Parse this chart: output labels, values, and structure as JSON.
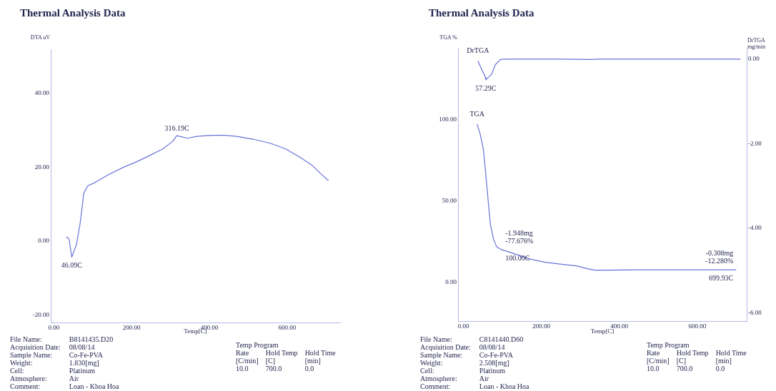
{
  "chart_data": [
    {
      "type": "line",
      "title": "Thermal Analysis Data",
      "xlabel": "Temp[C]",
      "ylabel": "DTA uV",
      "xlim": [
        -8,
        736
      ],
      "xticks": [
        {
          "value": 0,
          "label": "0.00"
        },
        {
          "value": 200,
          "label": "200.00"
        },
        {
          "value": 400,
          "label": "400.00"
        },
        {
          "value": 600,
          "label": "600.00"
        }
      ],
      "ylim": [
        -22,
        52
      ],
      "yticks": [
        {
          "value": -20,
          "label": "-20.00"
        },
        {
          "value": 0,
          "label": "0.00"
        },
        {
          "value": 20,
          "label": "20.00"
        },
        {
          "value": 40,
          "label": "40.00"
        }
      ],
      "series": [
        {
          "color": "#6a72d8",
          "x": [
            31.6,
            39,
            46.09,
            58,
            68,
            77,
            87,
            102,
            140,
            178,
            210,
            242,
            280,
            305,
            316.19,
            343,
            368,
            406,
            438,
            470,
            514,
            558,
            596,
            634,
            666,
            685,
            706
          ],
          "values": [
            1.2,
            0.7,
            -4.3,
            -0.9,
            5.1,
            13,
            15,
            15.7,
            18,
            20,
            21.4,
            23,
            25,
            27,
            28.6,
            27.9,
            28.4,
            28.7,
            28.7,
            28.4,
            27.6,
            26.5,
            25,
            22.7,
            20.4,
            18.4,
            16.4
          ]
        }
      ],
      "annotations": [
        {
          "text": "316.19C",
          "x": 316.19,
          "y": 28.6
        },
        {
          "text": "46.09C",
          "x": 46.09,
          "y": -4.3
        },
        "File Name:\tB8141435.D20",
        "Acquisition Date:\t08/08/14",
        "Sample Name:\tCo-Fe-PVA",
        "Weight:\t1.830[mg]",
        "Cell:\tPlatinum",
        "Atmosphere:\tAir",
        "Comment:\tLoan - Khoa Hoa",
        "Temp Program",
        "Rate\tHold Temp\tHold Time",
        "[C/min]\t[C]\t[min]",
        "10.0\t700.0\t0.0"
      ]
    },
    {
      "type": "line",
      "title": "Thermal Analysis Data",
      "xlabel": "Temp[C]",
      "ylabel": "TGA %",
      "y2label": "DrTGA mg/min",
      "xlim": [
        -14,
        727
      ],
      "xticks": [
        {
          "value": 0,
          "label": "0.00"
        },
        {
          "value": 200,
          "label": "200.00"
        },
        {
          "value": 400,
          "label": "400.00"
        },
        {
          "value": 600,
          "label": "600.00"
        }
      ],
      "ylim": [
        -24,
        144
      ],
      "yticks": [
        {
          "value": 0,
          "label": "0.00"
        },
        {
          "value": 50,
          "label": "50.00"
        },
        {
          "value": 100,
          "label": "100.00"
        }
      ],
      "y2lim": [
        -6.19,
        0.25
      ],
      "y2ticks": [
        {
          "value": -6,
          "label": "-6.00"
        },
        {
          "value": -4,
          "label": "-4.00"
        },
        {
          "value": -2,
          "label": "-2.00"
        },
        {
          "value": 0,
          "label": "0.00"
        }
      ],
      "series": [
        {
          "name": "DrTGA",
          "color": "#6a72d8",
          "axis": "y2",
          "x": [
            37,
            47,
            56,
            57.29,
            72,
            82,
            95,
            107,
            248,
            325,
            344,
            440,
            711
          ],
          "values": [
            -0.04,
            -0.25,
            -0.42,
            -0.49,
            -0.36,
            -0.13,
            -0.01,
            0,
            0,
            -0.01,
            0,
            0,
            0
          ]
        },
        {
          "name": "TGA",
          "color": "#6a72d8",
          "x": [
            35,
            43,
            51,
            56,
            63,
            69,
            77,
            85,
            95,
            100,
            133,
            171,
            210,
            248,
            293,
            318,
            337,
            376,
            440,
            503,
            567,
            631,
            699.93
          ],
          "values": [
            97.4,
            91.2,
            82,
            69.6,
            51.2,
            35.7,
            26.5,
            21.9,
            20.3,
            19.9,
            17.3,
            14.2,
            12.2,
            11.1,
            9.9,
            8.3,
            7.4,
            7.4,
            7.6,
            7.6,
            7.6,
            7.6,
            7.6
          ]
        }
      ],
      "annotations": [
        {
          "text": "57.29C",
          "x": 57.29,
          "y": 124.7
        },
        {
          "text": "100.00C",
          "x": 100,
          "y": 19.9
        },
        {
          "text": "-1.948mg",
          "x": 100,
          "y": 19.9
        },
        {
          "text": "-77.676%",
          "x": 100,
          "y": 19.9
        },
        {
          "text": "699.93C",
          "x": 699.93,
          "y": 7.6
        },
        {
          "text": "-0.308mg",
          "x": 699.93,
          "y": 7.6
        },
        {
          "text": "-12.280%",
          "x": 699.93,
          "y": 7.6
        },
        "File Name:\tC8141440.D60",
        "Acquisition Date:\t08/08/14",
        "Sample Name:\tCo-Fe-PVA",
        "Weight:\t2.508[mg]",
        "Cell:\tPlatinum",
        "Atmosphere:\tAir",
        "Comment:\tLoan - Khoa Hoa",
        "Temp Program",
        "Rate\tHold Temp\tHold Time",
        "[C/min]\t[C]\t[min]",
        "10.0\t700.0\t0.0"
      ]
    }
  ]
}
